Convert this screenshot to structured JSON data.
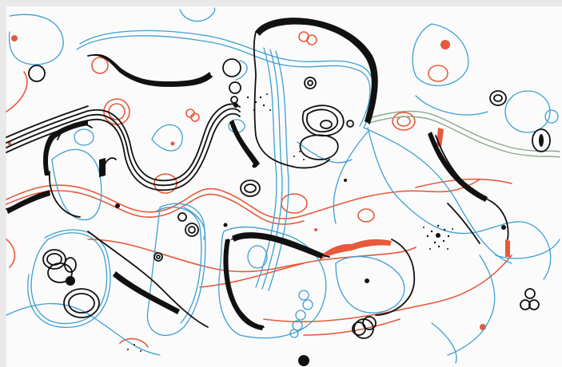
{
  "artwork": {
    "subject": "abstract-line-drawing",
    "palette": {
      "background": "#fbfbfb",
      "frame": "#e9e9e9",
      "black": "#111111",
      "blue": "#3d9fd3",
      "red": "#e8593a",
      "green": "#8aa88a"
    }
  }
}
